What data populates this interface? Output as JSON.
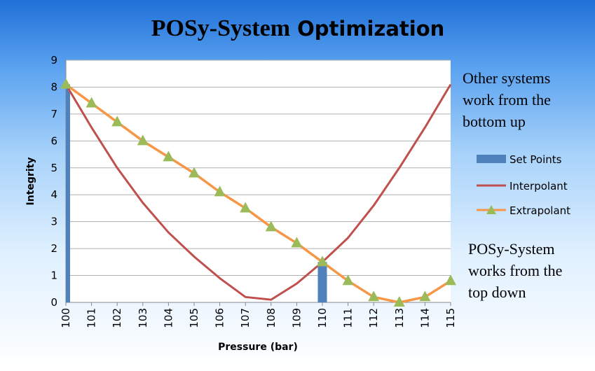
{
  "title_part1": "POSy-System",
  "title_part2": " Optimization",
  "colors": {
    "set_points": "#4f81bd",
    "interpolant": "#c0504d",
    "extrapolant_line": "#f79646",
    "extrapolant_marker": "#9bbb59"
  },
  "notes": {
    "top": "Other systems\nwork from the\nbottom up",
    "bottom": "POSy-System\nworks from the\ntop down"
  },
  "chart_data": {
    "type": "line",
    "title": "POSy-System Optimization",
    "xlabel": "Pressure (bar)",
    "ylabel": "Integrity",
    "categories": [
      "100",
      "101",
      "102",
      "103",
      "104",
      "105",
      "106",
      "107",
      "108",
      "109",
      "110",
      "111",
      "112",
      "113",
      "114",
      "115"
    ],
    "ylim": [
      0,
      9
    ],
    "yticks": [
      0,
      1,
      2,
      3,
      4,
      5,
      6,
      7,
      8,
      9
    ],
    "grid": true,
    "legend_position": "right",
    "series": [
      {
        "name": "Set Points",
        "type": "bar",
        "values": [
          8.1,
          0,
          0,
          0,
          0,
          0,
          0,
          0,
          0,
          0,
          1.5,
          0,
          0,
          0,
          0,
          0
        ]
      },
      {
        "name": "Interpolant",
        "type": "line",
        "values": [
          8.1,
          6.5,
          5.0,
          3.7,
          2.6,
          1.7,
          0.9,
          0.2,
          0.1,
          0.7,
          1.5,
          2.4,
          3.6,
          5.0,
          6.5,
          8.1
        ]
      },
      {
        "name": "Extrapolant",
        "type": "line-markers",
        "values": [
          8.1,
          7.4,
          6.7,
          6.0,
          5.4,
          4.8,
          4.1,
          3.5,
          2.8,
          2.2,
          1.5,
          0.8,
          0.2,
          0.0,
          0.2,
          0.8
        ]
      }
    ]
  }
}
